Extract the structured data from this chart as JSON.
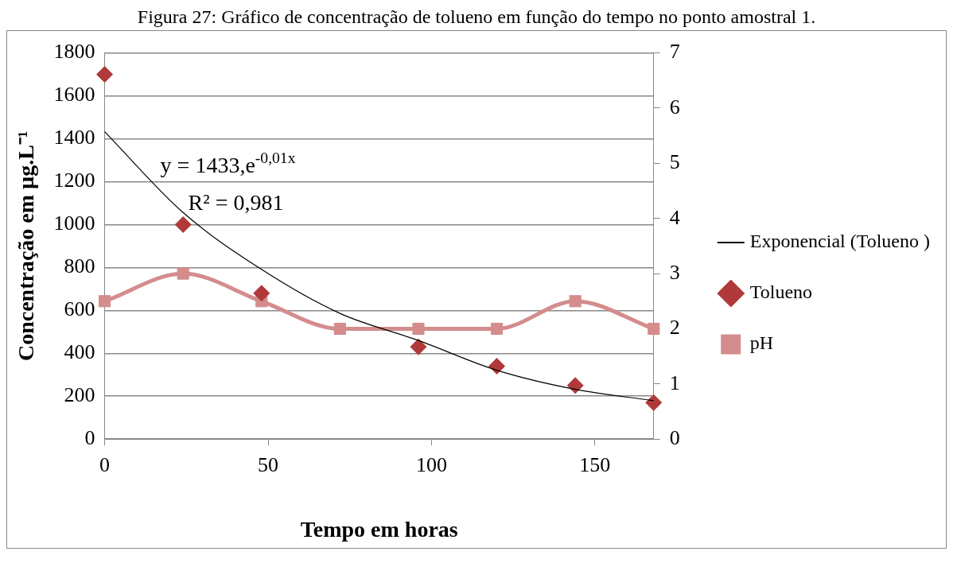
{
  "chart_data": {
    "type": "scatter",
    "title": "Figura 27: Gráfico de concentração de tolueno em função do tempo no ponto amostral 1.",
    "xlabel": "Tempo em horas",
    "ylabel": "Concentração em µg.L⁻¹",
    "annotations": [
      "y = 1433,e$^{-0,01x}$",
      "R² = 0,981"
    ],
    "series": [
      {
        "name": "Tolueno",
        "type": "scatter",
        "marker": "diamond",
        "color": "#b03a3a",
        "x": [
          0,
          24,
          48,
          72,
          96,
          120,
          144,
          168
        ],
        "values": [
          1700,
          1000,
          680,
          null,
          430,
          340,
          250,
          170
        ]
      },
      {
        "name": "pH",
        "type": "line",
        "axis": "y2",
        "marker": "square",
        "color": "#d48c8c",
        "x": [
          0,
          24,
          48,
          72,
          96,
          120,
          144,
          168
        ],
        "values": [
          2.5,
          3,
          2.5,
          2,
          2,
          2,
          2.5,
          2
        ]
      },
      {
        "name": "Exponencial (Tolueno )",
        "type": "line",
        "marker": "none",
        "color": "#000000",
        "x": [
          0,
          24,
          48,
          72,
          96,
          120,
          144,
          168
        ],
        "values": [
          1433,
          1056,
          791,
          586,
          460,
          321,
          232,
          179
        ]
      }
    ],
    "xlim": [
      0,
      168
    ],
    "xticks": [
      0,
      50,
      100,
      150
    ],
    "ylim": [
      0,
      1800
    ],
    "yticks": [
      0,
      200,
      400,
      600,
      800,
      1000,
      1200,
      1400,
      1600,
      1800
    ],
    "y2lim": [
      0,
      7
    ],
    "y2ticks": [
      0,
      1,
      2,
      3,
      4,
      5,
      6,
      7
    ],
    "grid": "y",
    "legend": "right"
  }
}
